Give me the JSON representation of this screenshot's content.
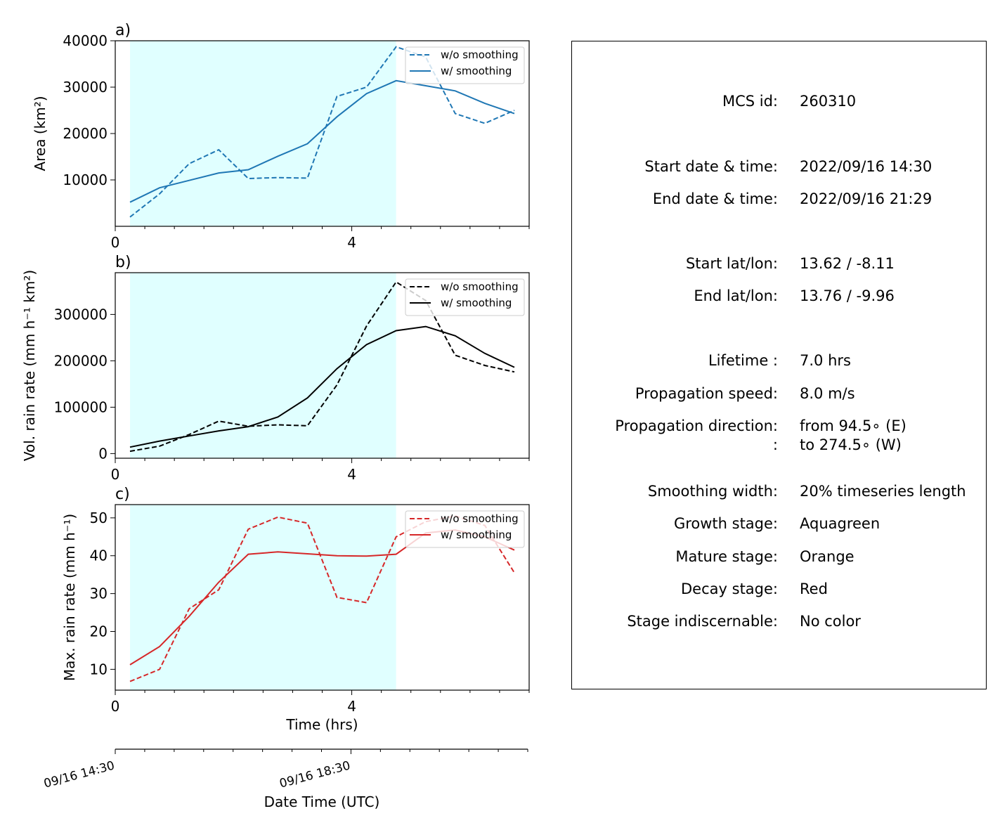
{
  "panels": [
    {
      "label": "a)",
      "ylabel": "Area  (km²)",
      "color": "#1f77b4",
      "yticks": [
        "10000",
        "20000",
        "30000",
        "40000"
      ],
      "xticks": [
        "0",
        "4"
      ],
      "legend": [
        "w/o smoothing",
        "w/ smoothing"
      ]
    },
    {
      "label": "b)",
      "ylabel": "Vol. rain rate (mm h⁻¹ km²)",
      "color": "#000000",
      "yticks": [
        "0",
        "100000",
        "200000",
        "300000"
      ],
      "xticks": [
        "0",
        "4"
      ],
      "legend": [
        "w/o smoothing",
        "w/ smoothing"
      ]
    },
    {
      "label": "c)",
      "ylabel": "Max. rain rate  (mm h⁻¹)",
      "color": "#d62728",
      "yticks": [
        "10",
        "20",
        "30",
        "40",
        "50"
      ],
      "xticks": [
        "0",
        "4"
      ],
      "legend": [
        "w/o smoothing",
        "w/ smoothing"
      ],
      "xlabel": "Time (hrs)"
    }
  ],
  "date_axis": {
    "ticks": [
      "09/16 14:30",
      "09/16 18:30"
    ],
    "xlabel": "Date Time (UTC)"
  },
  "chart_data": [
    {
      "type": "line",
      "x": [
        0.25,
        0.75,
        1.25,
        1.75,
        2.25,
        2.75,
        3.25,
        3.75,
        4.25,
        4.75,
        5.25,
        5.75,
        6.25,
        6.75
      ],
      "series": [
        {
          "name": "w/o smoothing",
          "style": "dashed",
          "values": [
            2000,
            7000,
            13500,
            16500,
            10300,
            10500,
            10400,
            28000,
            30000,
            38700,
            36500,
            24300,
            22200,
            25000
          ]
        },
        {
          "name": "w/ smoothing",
          "style": "solid",
          "values": [
            5200,
            8300,
            9900,
            11500,
            12200,
            15100,
            17800,
            23600,
            28600,
            31400,
            30300,
            29200,
            26500,
            24300
          ]
        }
      ],
      "xlim": [
        0,
        7
      ],
      "ylim": [
        0,
        40000
      ],
      "stage_shading": {
        "color": "#e0ffff",
        "x_start": 0.25,
        "x_end": 4.75
      },
      "legend_position": "upper right"
    },
    {
      "type": "line",
      "x": [
        0.25,
        0.75,
        1.25,
        1.75,
        2.25,
        2.75,
        3.25,
        3.75,
        4.25,
        4.75,
        5.25,
        5.75,
        6.25,
        6.75
      ],
      "series": [
        {
          "name": "w/o smoothing",
          "style": "dashed",
          "values": [
            5000,
            16000,
            41000,
            70000,
            59000,
            62000,
            60000,
            148000,
            275000,
            370000,
            330000,
            212000,
            190000,
            176000
          ]
        },
        {
          "name": "w/ smoothing",
          "style": "solid",
          "values": [
            14000,
            27000,
            38000,
            49000,
            58000,
            79000,
            120000,
            183000,
            235000,
            265000,
            274000,
            254000,
            216000,
            186000
          ]
        }
      ],
      "xlim": [
        0,
        7
      ],
      "ylim": [
        -10000,
        390000
      ],
      "stage_shading": {
        "color": "#e0ffff",
        "x_start": 0.25,
        "x_end": 4.75
      },
      "legend_position": "upper right"
    },
    {
      "type": "line",
      "x": [
        0.25,
        0.75,
        1.25,
        1.75,
        2.25,
        2.75,
        3.25,
        3.75,
        4.25,
        4.75,
        5.25,
        5.75,
        6.25,
        6.75
      ],
      "series": [
        {
          "name": "w/o smoothing",
          "style": "dashed",
          "values": [
            6.8,
            10.0,
            26.0,
            31.0,
            47.0,
            50.2,
            48.6,
            29.0,
            27.6,
            45.0,
            49.0,
            50.5,
            48.0,
            35.5
          ]
        },
        {
          "name": "w/ smoothing",
          "style": "solid",
          "values": [
            11.2,
            16.0,
            24.0,
            33.0,
            40.4,
            41.0,
            40.5,
            40.0,
            39.9,
            40.4,
            46.0,
            46.8,
            45.0,
            41.5
          ]
        }
      ],
      "xlim": [
        0,
        7
      ],
      "ylim": [
        4.5,
        53.5
      ],
      "stage_shading": {
        "color": "#e0ffff",
        "x_start": 0.25,
        "x_end": 4.75
      },
      "legend_position": "upper right"
    }
  ],
  "info": [
    {
      "key": "MCS id:",
      "value": "260310"
    },
    {
      "key": "Start date & time:",
      "value": "2022/09/16 14:30"
    },
    {
      "key": "End date & time:",
      "value": "2022/09/16 21:29"
    },
    {
      "key": "Start lat/lon:",
      "value": "13.62 / -8.11"
    },
    {
      "key": "End lat/lon:",
      "value": "13.76 / -9.96"
    },
    {
      "key": "Lifetime :",
      "value": "7.0 hrs"
    },
    {
      "key": "Propagation speed:",
      "value": "8.0 m/s"
    },
    {
      "key": "Propagation direction:",
      "value": "from  94.5∘ (E)"
    },
    {
      "key": ":",
      "value": "to   274.5∘ (W)"
    },
    {
      "key": "Smoothing width:",
      "value": "20% timeseries length"
    },
    {
      "key": "Growth stage:",
      "value": "Aquagreen"
    },
    {
      "key": "Mature stage:",
      "value": "Orange"
    },
    {
      "key": "Decay stage:",
      "value": "Red"
    },
    {
      "key": "Stage indiscernable:",
      "value": "No color"
    }
  ]
}
